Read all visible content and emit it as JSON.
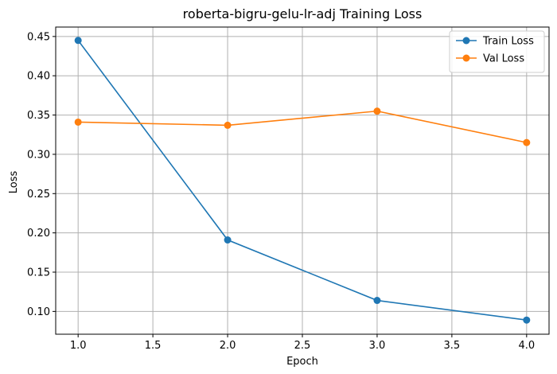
{
  "chart_data": {
    "type": "line",
    "title": "roberta-bigru-gelu-lr-adj Training Loss",
    "xlabel": "Epoch",
    "ylabel": "Loss",
    "xlim": [
      0.85,
      4.15
    ],
    "ylim": [
      0.071,
      0.462
    ],
    "xticks": [
      1.0,
      1.5,
      2.0,
      2.5,
      3.0,
      3.5,
      4.0
    ],
    "xtick_labels": [
      "1.0",
      "1.5",
      "2.0",
      "2.5",
      "3.0",
      "3.5",
      "4.0"
    ],
    "yticks": [
      0.1,
      0.15,
      0.2,
      0.25,
      0.3,
      0.35,
      0.4,
      0.45
    ],
    "ytick_labels": [
      "0.10",
      "0.15",
      "0.20",
      "0.25",
      "0.30",
      "0.35",
      "0.40",
      "0.45"
    ],
    "grid": true,
    "legend_position": "top-right",
    "x": [
      1,
      2,
      3,
      4
    ],
    "series": [
      {
        "name": "Train Loss",
        "color": "#1f77b4",
        "marker": "circle",
        "values": [
          0.445,
          0.191,
          0.114,
          0.089
        ]
      },
      {
        "name": "Val Loss",
        "color": "#ff7f0e",
        "marker": "circle",
        "values": [
          0.341,
          0.337,
          0.355,
          0.315
        ]
      }
    ]
  }
}
